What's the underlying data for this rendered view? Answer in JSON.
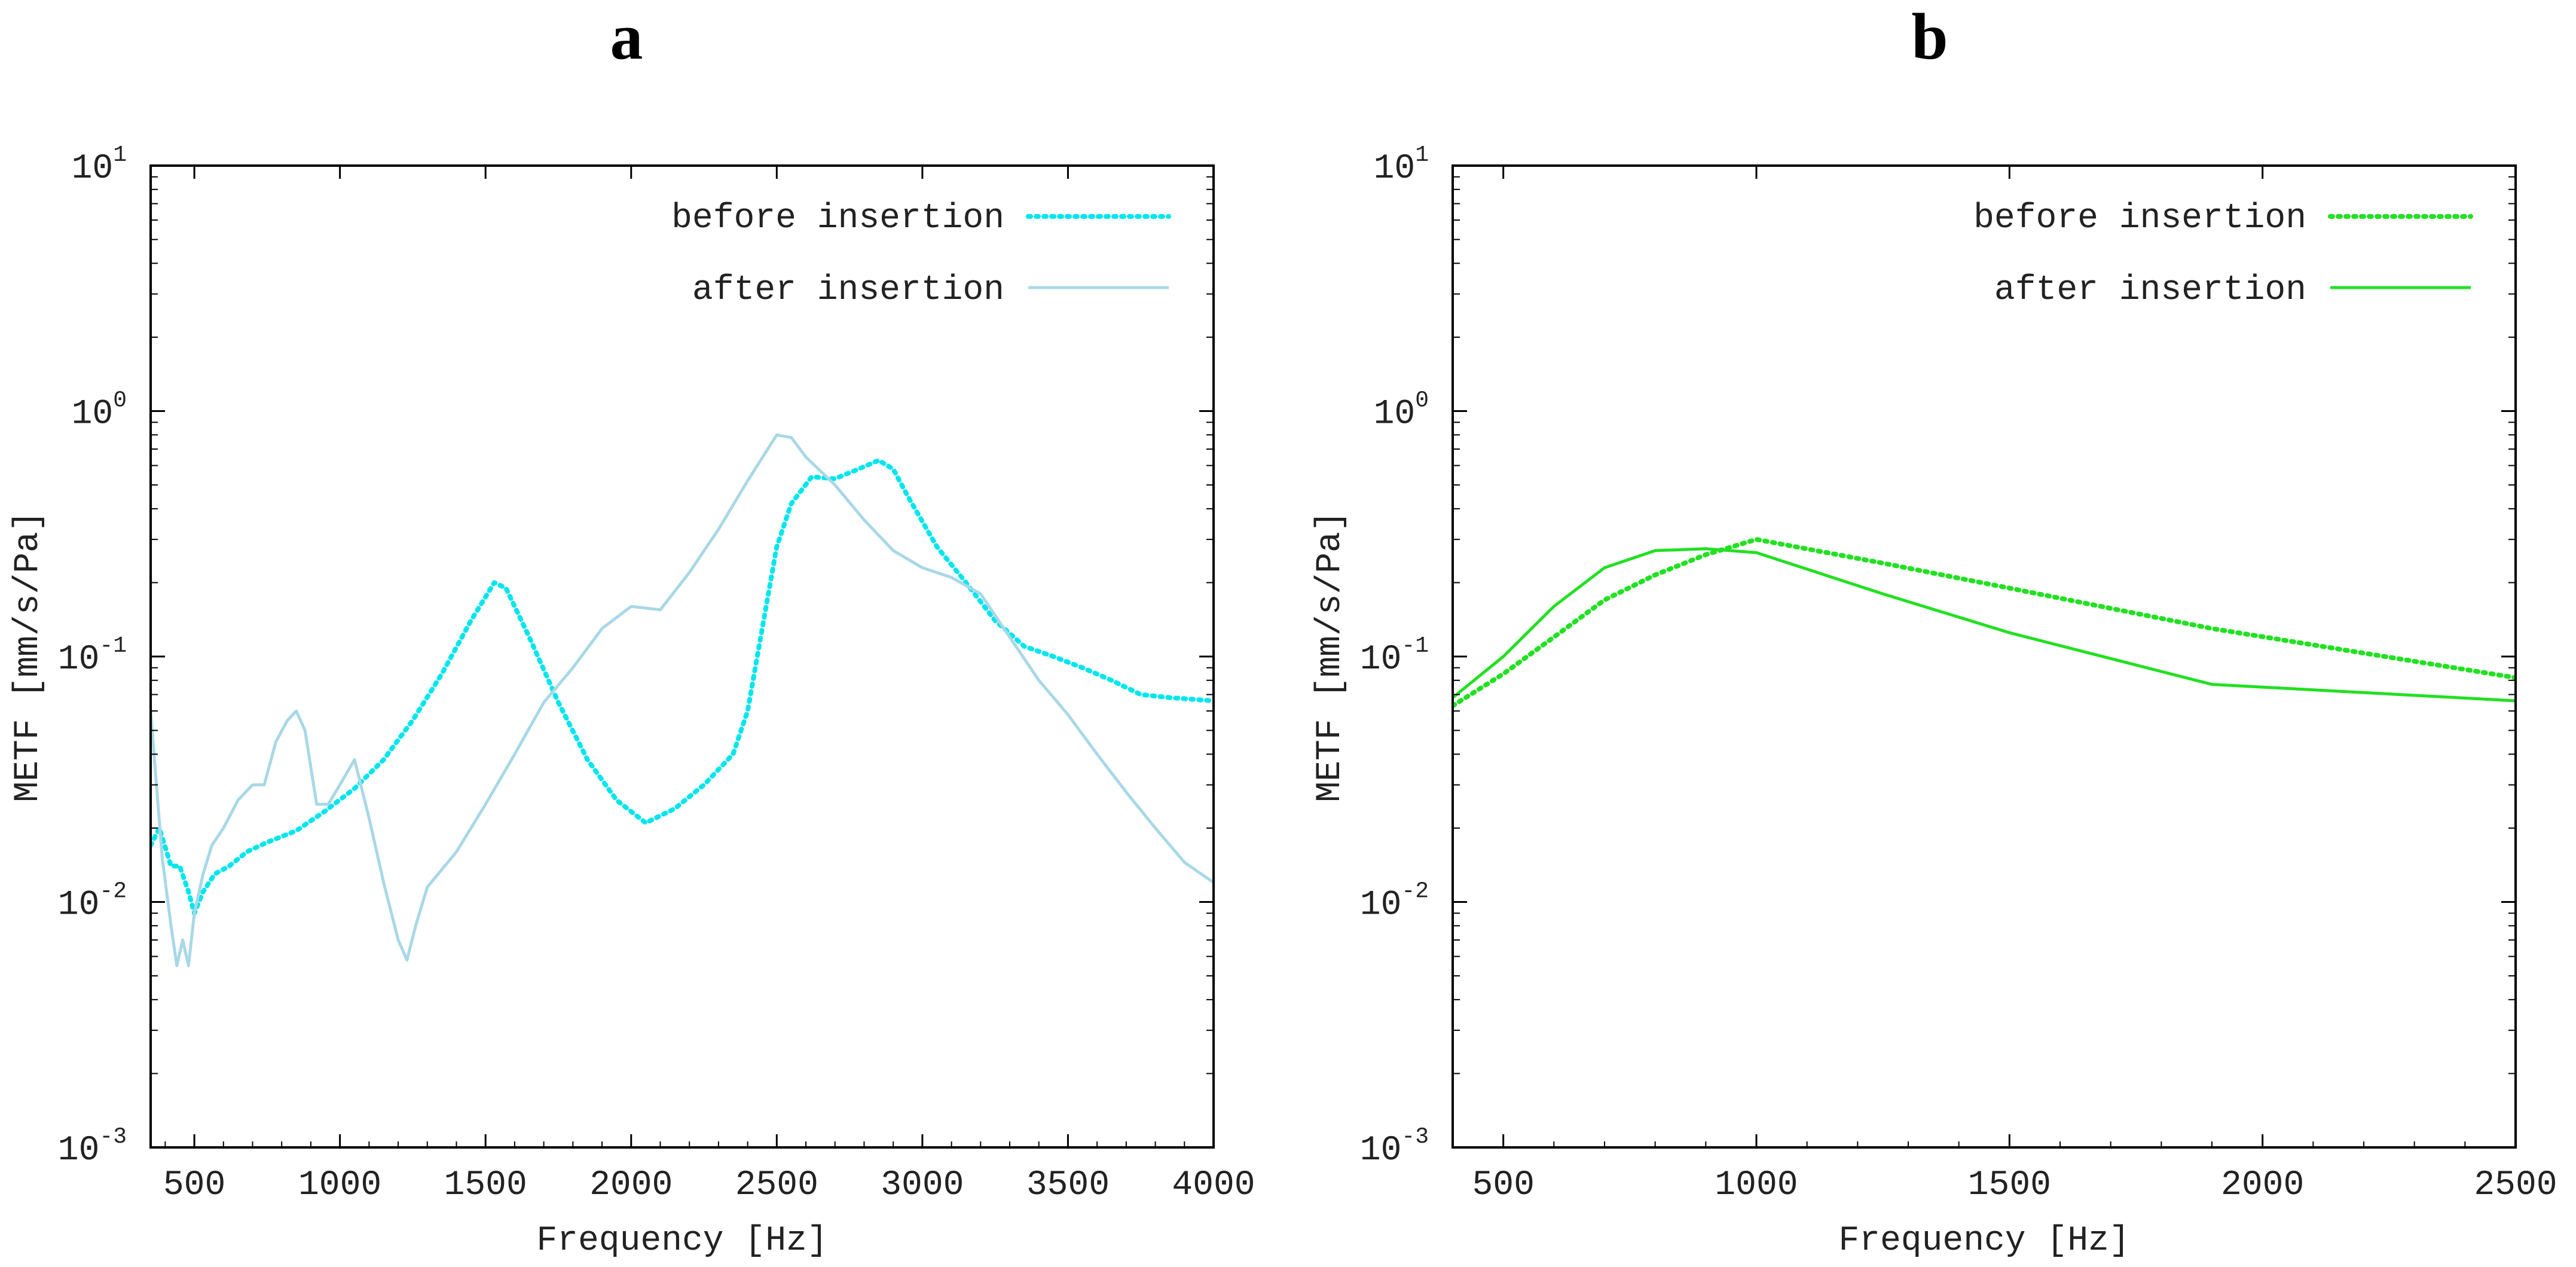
{
  "chart_data": [
    {
      "panel": "a",
      "type": "line",
      "xlabel": "Frequency [Hz]",
      "ylabel": "METF  [mm/s/Pa]",
      "xlim": [
        350,
        4000
      ],
      "ylim": [
        0.001,
        10
      ],
      "yscale": "log",
      "xticks": [
        500,
        1000,
        1500,
        2000,
        2500,
        3000,
        3500,
        4000
      ],
      "yticks": [
        {
          "base": "10",
          "exp": "-3",
          "value": 0.001
        },
        {
          "base": "10",
          "exp": "-2",
          "value": 0.01
        },
        {
          "base": "10",
          "exp": "-1",
          "value": 0.1
        },
        {
          "base": "10",
          "exp": "0",
          "value": 1
        },
        {
          "base": "10",
          "exp": "1",
          "value": 10
        }
      ],
      "grid": false,
      "legend_position": "top-right",
      "series": [
        {
          "name": "before insertion",
          "color": "#00e5ee",
          "style": "dotted",
          "points": [
            [
              350,
              0.017
            ],
            [
              380,
              0.02
            ],
            [
              420,
              0.014
            ],
            [
              450,
              0.014
            ],
            [
              480,
              0.011
            ],
            [
              500,
              0.009
            ],
            [
              530,
              0.011
            ],
            [
              570,
              0.013
            ],
            [
              620,
              0.014
            ],
            [
              680,
              0.016
            ],
            [
              750,
              0.0175
            ],
            [
              850,
              0.0195
            ],
            [
              950,
              0.0235
            ],
            [
              1050,
              0.029
            ],
            [
              1150,
              0.038
            ],
            [
              1250,
              0.055
            ],
            [
              1350,
              0.085
            ],
            [
              1450,
              0.14
            ],
            [
              1530,
              0.2
            ],
            [
              1570,
              0.19
            ],
            [
              1650,
              0.12
            ],
            [
              1750,
              0.065
            ],
            [
              1850,
              0.038
            ],
            [
              1950,
              0.026
            ],
            [
              2050,
              0.021
            ],
            [
              2150,
              0.024
            ],
            [
              2250,
              0.03
            ],
            [
              2350,
              0.04
            ],
            [
              2400,
              0.06
            ],
            [
              2450,
              0.13
            ],
            [
              2500,
              0.28
            ],
            [
              2550,
              0.42
            ],
            [
              2620,
              0.54
            ],
            [
              2700,
              0.53
            ],
            [
              2780,
              0.58
            ],
            [
              2850,
              0.63
            ],
            [
              2900,
              0.58
            ],
            [
              2950,
              0.45
            ],
            [
              3050,
              0.28
            ],
            [
              3150,
              0.2
            ],
            [
              3250,
              0.14
            ],
            [
              3350,
              0.11
            ],
            [
              3450,
              0.1
            ],
            [
              3550,
              0.09
            ],
            [
              3650,
              0.08
            ],
            [
              3750,
              0.07
            ],
            [
              3850,
              0.068
            ],
            [
              4000,
              0.066
            ]
          ]
        },
        {
          "name": "after insertion",
          "color": "#a8d8e6",
          "style": "solid",
          "points": [
            [
              350,
              0.06
            ],
            [
              370,
              0.03
            ],
            [
              390,
              0.015
            ],
            [
              420,
              0.008
            ],
            [
              440,
              0.0055
            ],
            [
              460,
              0.007
            ],
            [
              480,
              0.0055
            ],
            [
              500,
              0.009
            ],
            [
              530,
              0.013
            ],
            [
              560,
              0.017
            ],
            [
              600,
              0.02
            ],
            [
              650,
              0.026
            ],
            [
              700,
              0.03
            ],
            [
              740,
              0.03
            ],
            [
              780,
              0.045
            ],
            [
              820,
              0.055
            ],
            [
              850,
              0.06
            ],
            [
              880,
              0.05
            ],
            [
              920,
              0.025
            ],
            [
              960,
              0.025
            ],
            [
              1000,
              0.03
            ],
            [
              1050,
              0.038
            ],
            [
              1100,
              0.022
            ],
            [
              1150,
              0.012
            ],
            [
              1200,
              0.007
            ],
            [
              1230,
              0.0058
            ],
            [
              1260,
              0.008
            ],
            [
              1300,
              0.0115
            ],
            [
              1400,
              0.016
            ],
            [
              1500,
              0.025
            ],
            [
              1600,
              0.04
            ],
            [
              1700,
              0.065
            ],
            [
              1800,
              0.09
            ],
            [
              1900,
              0.13
            ],
            [
              2000,
              0.16
            ],
            [
              2100,
              0.155
            ],
            [
              2200,
              0.22
            ],
            [
              2300,
              0.33
            ],
            [
              2400,
              0.52
            ],
            [
              2500,
              0.8
            ],
            [
              2550,
              0.78
            ],
            [
              2600,
              0.65
            ],
            [
              2700,
              0.5
            ],
            [
              2800,
              0.36
            ],
            [
              2900,
              0.27
            ],
            [
              3000,
              0.23
            ],
            [
              3100,
              0.21
            ],
            [
              3200,
              0.18
            ],
            [
              3300,
              0.12
            ],
            [
              3400,
              0.08
            ],
            [
              3500,
              0.058
            ],
            [
              3600,
              0.04
            ],
            [
              3700,
              0.028
            ],
            [
              3800,
              0.02
            ],
            [
              3900,
              0.0145
            ],
            [
              4000,
              0.012
            ]
          ]
        }
      ]
    },
    {
      "panel": "b",
      "type": "line",
      "xlabel": "Frequency [Hz]",
      "ylabel": "METF  [mm/s/Pa]",
      "xlim": [
        400,
        2500
      ],
      "ylim": [
        0.001,
        10
      ],
      "yscale": "log",
      "xticks": [
        500,
        1000,
        1500,
        2000,
        2500
      ],
      "yticks": [
        {
          "base": "10",
          "exp": "-3",
          "value": 0.001
        },
        {
          "base": "10",
          "exp": "-2",
          "value": 0.01
        },
        {
          "base": "10",
          "exp": "-1",
          "value": 0.1
        },
        {
          "base": "10",
          "exp": "0",
          "value": 1
        },
        {
          "base": "10",
          "exp": "1",
          "value": 10
        }
      ],
      "grid": false,
      "legend_position": "top-right",
      "series": [
        {
          "name": "before insertion",
          "color": "#22e022",
          "style": "dotted",
          "points": [
            [
              400,
              0.063
            ],
            [
              500,
              0.085
            ],
            [
              600,
              0.12
            ],
            [
              700,
              0.17
            ],
            [
              800,
              0.215
            ],
            [
              900,
              0.26
            ],
            [
              1000,
              0.3
            ],
            [
              1250,
              0.24
            ],
            [
              1500,
              0.19
            ],
            [
              1900,
              0.13
            ],
            [
              2500,
              0.082
            ]
          ]
        },
        {
          "name": "after insertion",
          "color": "#22e022",
          "style": "solid",
          "points": [
            [
              400,
              0.068
            ],
            [
              500,
              0.1
            ],
            [
              600,
              0.16
            ],
            [
              700,
              0.23
            ],
            [
              800,
              0.27
            ],
            [
              900,
              0.275
            ],
            [
              1000,
              0.265
            ],
            [
              1250,
              0.18
            ],
            [
              1500,
              0.125
            ],
            [
              1900,
              0.077
            ],
            [
              2500,
              0.066
            ]
          ]
        }
      ]
    }
  ]
}
